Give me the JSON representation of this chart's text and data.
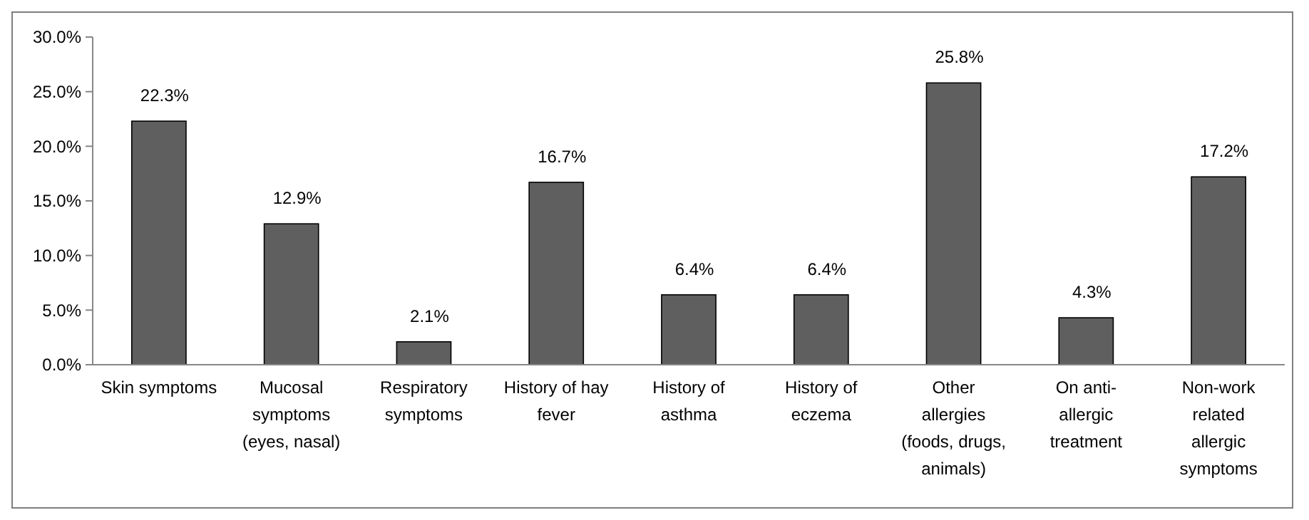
{
  "chart_data": {
    "type": "bar",
    "categories": [
      "Skin symptoms",
      "Mucosal symptoms (eyes, nasal)",
      "Respiratory symptoms",
      "History of hay fever",
      "History of asthma",
      "History of eczema",
      "Other allergies (foods, drugs, animals)",
      "On anti-allergic treatment",
      "Non-work related allergic symptoms"
    ],
    "values": [
      22.3,
      12.9,
      2.1,
      16.7,
      6.4,
      6.4,
      25.8,
      4.3,
      17.2
    ],
    "value_labels": [
      "22.3%",
      "12.9%",
      "2.1%",
      "16.7%",
      "6.4%",
      "6.4%",
      "25.8%",
      "4.3%",
      "17.2%"
    ],
    "color": "#5f5f5f",
    "ylim": [
      0,
      30
    ],
    "yticks": [
      {
        "value": 0,
        "label": "0.0%"
      },
      {
        "value": 5,
        "label": "5.0%"
      },
      {
        "value": 10,
        "label": "10.0%"
      },
      {
        "value": 15,
        "label": "15.0%"
      },
      {
        "value": 20,
        "label": "20.0%"
      },
      {
        "value": 25,
        "label": "25.0%"
      },
      {
        "value": 30,
        "label": "30.0%"
      }
    ],
    "grid": false
  }
}
